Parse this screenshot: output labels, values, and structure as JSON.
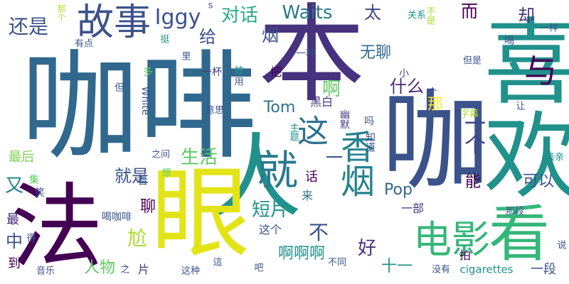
{
  "colors": {
    "background": "#ffffff",
    "palette": [
      "#440154",
      "#3b528b",
      "#21918c",
      "#5ec962",
      "#fde725"
    ]
  },
  "words": [
    {
      "text": "咖啡",
      "color": "#31688e"
    },
    {
      "text": "本",
      "color": "#46327e"
    },
    {
      "text": "喜欢",
      "color": "#21918c"
    },
    {
      "text": "人",
      "color": "#21918c"
    },
    {
      "text": "咖",
      "color": "#3b528b"
    },
    {
      "text": "法",
      "color": "#440154"
    },
    {
      "text": "眼",
      "color": "#e3e418"
    },
    {
      "text": "看",
      "color": "#35b779"
    },
    {
      "text": "电影",
      "color": "#35b779"
    },
    {
      "text": "香烟",
      "color": "#26828e"
    },
    {
      "text": "就",
      "color": "#2a788e"
    },
    {
      "text": "故事",
      "color": "#3b528b"
    },
    {
      "text": "与",
      "color": "#440154"
    },
    {
      "text": "Iggy",
      "color": "#3b528b"
    },
    {
      "text": "Waits",
      "color": "#2a788e"
    },
    {
      "text": "对话",
      "color": "#27ad81"
    },
    {
      "text": "还是",
      "color": "#3b528b"
    },
    {
      "text": "太",
      "color": "#3e4989"
    },
    {
      "text": "而",
      "color": "#440154"
    },
    {
      "text": "却",
      "color": "#46327e"
    },
    {
      "text": "这",
      "color": "#2c728e"
    },
    {
      "text": "给",
      "color": "#3b528b"
    },
    {
      "text": "烟",
      "color": "#3b528b"
    },
    {
      "text": "啊",
      "color": "#5ec962"
    },
    {
      "text": "无聊",
      "color": "#31688e"
    },
    {
      "text": "一个",
      "color": "#414487"
    },
    {
      "text": "Tom",
      "color": "#2c728e"
    },
    {
      "text": "什么",
      "color": "#482878"
    },
    {
      "text": "那",
      "color": "#fde725"
    },
    {
      "text": "能",
      "color": "#440154"
    },
    {
      "text": "生活",
      "color": "#5ec962"
    },
    {
      "text": "就是",
      "color": "#3b528b"
    },
    {
      "text": "一",
      "color": "#3b528b"
    },
    {
      "text": "又",
      "color": "#26828e"
    },
    {
      "text": "可以",
      "color": "#3b528b"
    },
    {
      "text": "Pop",
      "color": "#31688e"
    },
    {
      "text": "短片",
      "color": "#21918c"
    },
    {
      "text": "聊",
      "color": "#440154"
    },
    {
      "text": "不",
      "color": "#3b528b"
    },
    {
      "text": "好",
      "color": "#46327e"
    },
    {
      "text": "尬",
      "color": "#addc30"
    },
    {
      "text": "中",
      "color": "#3b528b"
    },
    {
      "text": "啊啊啊",
      "color": "#21918c"
    },
    {
      "text": "人物",
      "color": "#5ec962"
    },
    {
      "text": "十一",
      "color": "#21918c"
    },
    {
      "text": "一部",
      "color": "#443983"
    },
    {
      "text": "一段",
      "color": "#3b528b"
    },
    {
      "text": "最后",
      "color": "#7ad151"
    },
    {
      "text": "到",
      "color": "#440154"
    },
    {
      "text": "最",
      "color": "#482878"
    },
    {
      "text": "这个",
      "color": "#3b528b"
    },
    {
      "text": "话",
      "color": "#440154"
    },
    {
      "text": "着",
      "color": "#3b528b"
    },
    {
      "text": "来",
      "color": "#2c728e"
    },
    {
      "text": "拍",
      "color": "#440154"
    },
    {
      "text": "片",
      "color": "#443983"
    },
    {
      "text": "一种",
      "color": "#3b528b"
    },
    {
      "text": "小",
      "color": "#3b528b"
    },
    {
      "text": "把",
      "color": "#440154"
    },
    {
      "text": "黑白",
      "color": "#443983"
    },
    {
      "text": "幽默",
      "color": "#443983"
    },
    {
      "text": "吗",
      "color": "#3b528b"
    },
    {
      "text": "知道",
      "color": "#3b528b"
    },
    {
      "text": "一杯",
      "color": "#443983"
    },
    {
      "text": "被",
      "color": "#21918c"
    },
    {
      "text": "用",
      "color": "#3b528b"
    },
    {
      "text": "里",
      "color": "#3b528b"
    },
    {
      "text": "多",
      "color": "#5ec962"
    },
    {
      "text": "有点",
      "color": "#3b528b"
    },
    {
      "text": "但",
      "color": "#3b528b"
    },
    {
      "text": "White",
      "color": "#3b528b"
    },
    {
      "text": "意思",
      "color": "#3b528b"
    },
    {
      "text": "主题",
      "color": "#21918c"
    },
    {
      "text": "之间",
      "color": "#3b528b"
    },
    {
      "text": "集",
      "color": "#5ec962"
    },
    {
      "text": "笑",
      "color": "#3b528b"
    },
    {
      "text": "想",
      "color": "#5ec962"
    },
    {
      "text": "喝咖啡",
      "color": "#3b528b"
    },
    {
      "text": "得",
      "color": "#3b528b"
    },
    {
      "text": "音乐",
      "color": "#3b528b"
    },
    {
      "text": "之",
      "color": "#3b528b"
    },
    {
      "text": "这种",
      "color": "#3b528b"
    },
    {
      "text": "這",
      "color": "#3b528b"
    },
    {
      "text": "吧",
      "color": "#3b528b"
    },
    {
      "text": "不同",
      "color": "#3b528b"
    },
    {
      "text": "没有",
      "color": "#3b528b"
    },
    {
      "text": "cigarettes",
      "color": "#21918c"
    },
    {
      "text": "那段",
      "color": "#3b528b"
    },
    {
      "text": "表亲",
      "color": "#21918c"
    },
    {
      "text": "字幕",
      "color": "#addc30"
    },
    {
      "text": "让",
      "color": "#3b528b"
    },
    {
      "text": "说",
      "color": "#3b528b"
    },
    {
      "text": "但是",
      "color": "#3b528b"
    },
    {
      "text": "个",
      "color": "#3b528b"
    },
    {
      "text": "喝",
      "color": "#3b528b"
    },
    {
      "text": "一样",
      "color": "#3b528b"
    },
    {
      "text": "关系",
      "color": "#21918c"
    },
    {
      "text": "不是",
      "color": "#addc30"
    },
    {
      "text": "挺",
      "color": "#21918c"
    },
    {
      "text": "那个",
      "color": "#addc30"
    },
    {
      "text": "s",
      "color": "#3b528b"
    }
  ]
}
